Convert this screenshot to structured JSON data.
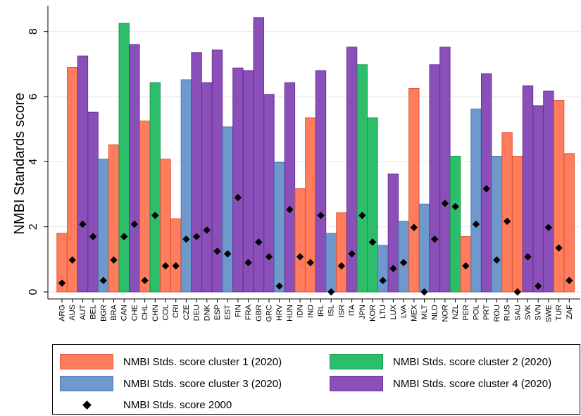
{
  "chart_data": {
    "type": "bar",
    "ylabel": "NMBI Standards score",
    "xlabel": "",
    "ylim": [
      0,
      8.6
    ],
    "yticks": [
      0,
      2,
      4,
      6,
      8
    ],
    "grid": true,
    "legend_position": "bottom",
    "categories": [
      "ARG",
      "AUS",
      "AUT",
      "BEL",
      "BGR",
      "BRA",
      "CAN",
      "CHE",
      "CHL",
      "CHN",
      "COL",
      "CRI",
      "CZE",
      "DEU",
      "DNK",
      "ESP",
      "EST",
      "FIN",
      "FRA",
      "GBR",
      "GRC",
      "HRV",
      "HUN",
      "IDN",
      "IND",
      "IRL",
      "ISL",
      "ISR",
      "ITA",
      "JPN",
      "KOR",
      "LTU",
      "LUX",
      "LVA",
      "MEX",
      "MLT",
      "NLD",
      "NOR",
      "NZL",
      "PER",
      "POL",
      "PRT",
      "ROU",
      "RUS",
      "SAU",
      "SVK",
      "SVN",
      "SWE",
      "TUR",
      "ZAF"
    ],
    "clusters": [
      1,
      1,
      4,
      4,
      3,
      1,
      2,
      4,
      1,
      2,
      1,
      1,
      3,
      4,
      4,
      4,
      3,
      4,
      4,
      4,
      4,
      3,
      4,
      1,
      1,
      4,
      3,
      1,
      4,
      2,
      2,
      3,
      4,
      3,
      1,
      3,
      4,
      4,
      2,
      1,
      3,
      4,
      3,
      1,
      1,
      4,
      4,
      4,
      1,
      1
    ],
    "series": [
      {
        "name": "NMBI Stds. score 2020",
        "values": [
          1.8,
          6.9,
          7.25,
          5.52,
          4.08,
          4.52,
          8.25,
          7.6,
          5.25,
          6.43,
          4.08,
          2.25,
          6.52,
          7.35,
          6.43,
          7.43,
          5.07,
          6.88,
          6.8,
          8.43,
          6.07,
          3.98,
          6.43,
          3.17,
          5.35,
          6.8,
          1.8,
          2.43,
          7.52,
          6.98,
          5.35,
          1.43,
          3.62,
          2.17,
          6.25,
          2.7,
          6.98,
          7.52,
          4.17,
          1.7,
          5.62,
          6.7,
          4.17,
          4.9,
          4.17,
          6.33,
          5.72,
          6.17,
          5.88,
          4.25
        ]
      },
      {
        "name": "NMBI Stds. score 2000",
        "values": [
          0.27,
          0.98,
          2.08,
          1.7,
          0.35,
          0.98,
          1.7,
          2.08,
          0.35,
          2.35,
          0.8,
          0.8,
          1.62,
          1.7,
          1.9,
          1.25,
          1.17,
          2.9,
          0.9,
          1.53,
          1.08,
          0.18,
          2.53,
          1.08,
          0.9,
          2.35,
          0.0,
          0.8,
          1.17,
          2.35,
          1.53,
          0.35,
          0.72,
          0.9,
          1.98,
          0.0,
          1.62,
          2.72,
          2.62,
          0.8,
          2.08,
          3.17,
          0.98,
          2.17,
          0.0,
          1.08,
          0.18,
          1.98,
          1.35,
          0.35
        ]
      }
    ],
    "cluster_colors": {
      "1": {
        "fill": "#FF7C5C",
        "stroke": "#E0583A"
      },
      "2": {
        "fill": "#2DBE6C",
        "stroke": "#1E9A54"
      },
      "3": {
        "fill": "#6F98CC",
        "stroke": "#4F79B0"
      },
      "4": {
        "fill": "#8A4FB8",
        "stroke": "#6A3396"
      }
    },
    "marker_color": "#000000",
    "grid_color": "#E6E6E6"
  },
  "legend": {
    "items": [
      {
        "key": "c1",
        "label": "NMBI Stds. score cluster 1 (2020)",
        "cluster": "1"
      },
      {
        "key": "c2",
        "label": "NMBI Stds. score cluster 2 (2020)",
        "cluster": "2"
      },
      {
        "key": "c3",
        "label": "NMBI Stds. score cluster 3 (2020)",
        "cluster": "3"
      },
      {
        "key": "c4",
        "label": "NMBI Stds. score cluster 4 (2020)",
        "cluster": "4"
      },
      {
        "key": "m2000",
        "label": "NMBI Stds. score 2000",
        "marker": "diamond"
      }
    ]
  }
}
